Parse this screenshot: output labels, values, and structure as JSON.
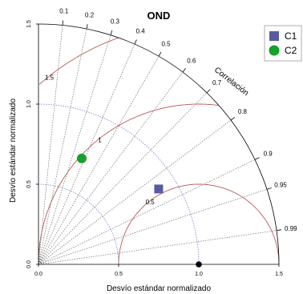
{
  "chart_data": {
    "type": "taylor",
    "title": "OND",
    "xlabel": "Desvío estándar normalizado",
    "ylabel": "Desvío estándar normalizado",
    "corr_axis_label": "Correlación",
    "sd_range": [
      0,
      1.5
    ],
    "sd_ticks": [
      "0.0",
      "0.5",
      "1.0",
      "1.5"
    ],
    "sd_tick_values": [
      0,
      0.5,
      1.0,
      1.5
    ],
    "corr_ticks": [
      {
        "label": "0.1",
        "value": 0.1
      },
      {
        "label": "0.2",
        "value": 0.2
      },
      {
        "label": "0.3",
        "value": 0.3
      },
      {
        "label": "0.4",
        "value": 0.4
      },
      {
        "label": "0.5",
        "value": 0.5
      },
      {
        "label": "0.6",
        "value": 0.6
      },
      {
        "label": "0.7",
        "value": 0.7
      },
      {
        "label": "0.8",
        "value": 0.8
      },
      {
        "label": "0.9",
        "value": 0.9
      },
      {
        "label": "0.95",
        "value": 0.95
      },
      {
        "label": "0.99",
        "value": 0.99
      }
    ],
    "rms_contours": [
      {
        "label": "0.5",
        "value": 0.5
      },
      {
        "label": "1",
        "value": 1.0
      },
      {
        "label": "1.5",
        "value": 1.5
      }
    ],
    "reference": {
      "sd": 1.0,
      "corr": 1.0
    },
    "series": [
      {
        "name": "C1",
        "marker": "square",
        "color": "#5a5aa0",
        "sd": 0.885,
        "corr": 0.847
      },
      {
        "name": "C2",
        "marker": "circle",
        "color": "#16a02c",
        "sd": 0.714,
        "corr": 0.378
      }
    ],
    "legend_position": "top-right",
    "colors": {
      "rms": "#b85a5a",
      "sd_arcs": "#7a7ad8",
      "reference": "#000000"
    }
  }
}
